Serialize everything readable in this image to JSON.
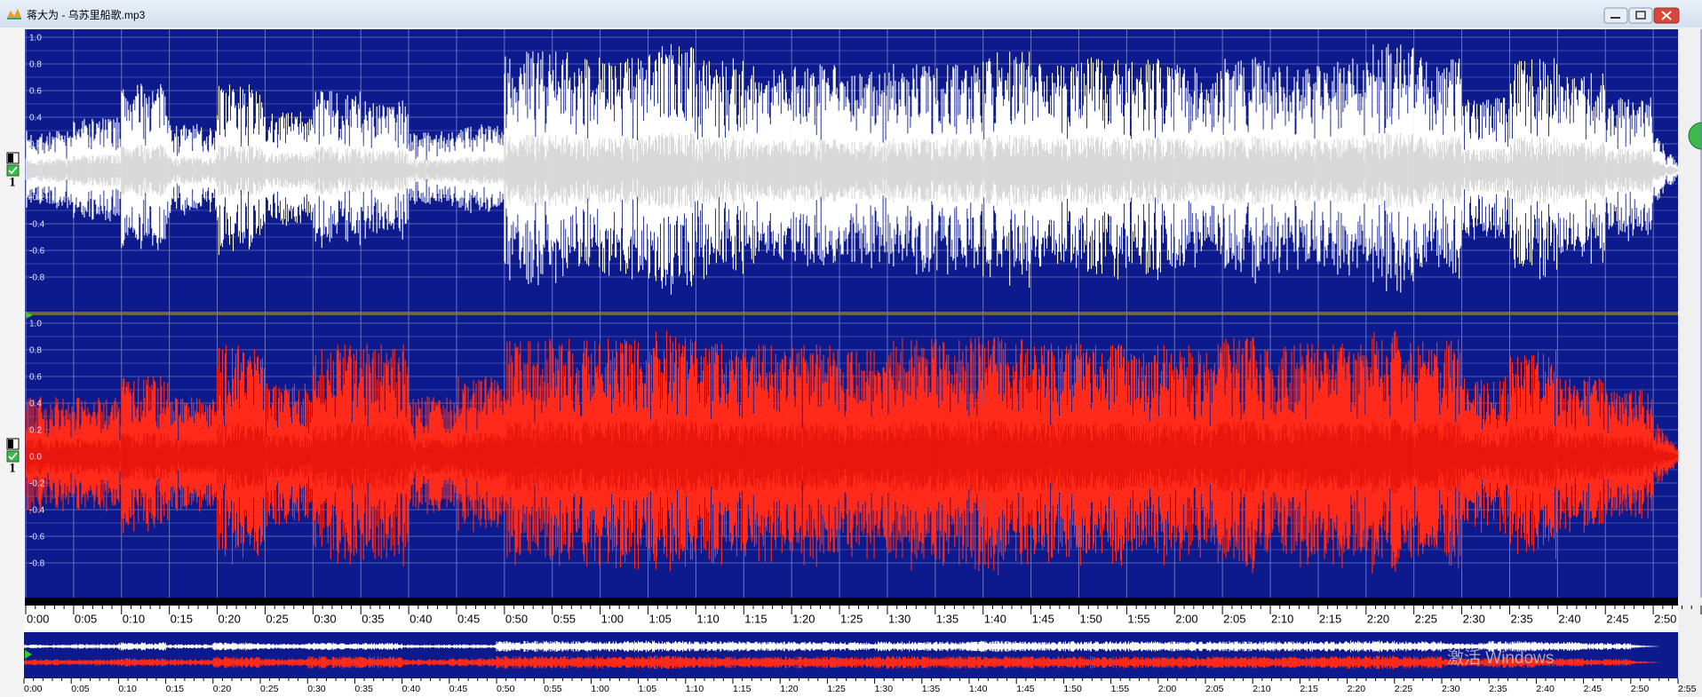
{
  "window": {
    "title": "蒋大为 - 乌苏里船歌.mp3"
  },
  "channels": [
    {
      "label": "1",
      "color": "#ffffff",
      "core_color": "#cfcfcf",
      "peaks": [
        0.3,
        0.4,
        0.65,
        0.35,
        0.65,
        0.45,
        0.6,
        0.55,
        0.3,
        0.35,
        0.9,
        0.9,
        0.85,
        0.95,
        0.85,
        0.8,
        0.8,
        0.75,
        0.8,
        0.8,
        0.9,
        0.8,
        0.85,
        0.85,
        0.8,
        0.85,
        0.8,
        0.85,
        0.95,
        0.85,
        0.55,
        0.85,
        0.75,
        0.55,
        0.3
      ]
    },
    {
      "label": "1",
      "color": "#ff2a1a",
      "core_color": "#e3120a",
      "peaks": [
        0.45,
        0.45,
        0.6,
        0.45,
        0.85,
        0.55,
        0.85,
        0.85,
        0.45,
        0.6,
        0.9,
        0.9,
        0.9,
        0.95,
        0.85,
        0.85,
        0.85,
        0.8,
        0.9,
        0.9,
        0.9,
        0.85,
        0.85,
        0.85,
        0.85,
        0.9,
        0.85,
        0.85,
        0.95,
        0.9,
        0.6,
        0.8,
        0.6,
        0.5,
        0.3
      ]
    }
  ],
  "amplitude_axis": {
    "ylim": [
      -1,
      1
    ],
    "yticks": [
      {
        "value": 1,
        "label": "1.0"
      },
      0.8,
      0.6,
      0.4,
      0.2,
      {
        "value": 0,
        "label": "0.0"
      },
      -0.2,
      -0.4,
      -0.6,
      -0.8
    ]
  },
  "time_axis": {
    "xlim": [
      0,
      175
    ],
    "xticks": [
      {
        "value": 0,
        "label": "0:00"
      },
      {
        "value": 5,
        "label": "0:05"
      },
      {
        "value": 10,
        "label": "0:10"
      },
      {
        "value": 15,
        "label": "0:15"
      },
      {
        "value": 20,
        "label": "0:20"
      },
      {
        "value": 25,
        "label": "0:25"
      },
      {
        "value": 30,
        "label": "0:30"
      },
      {
        "value": 35,
        "label": "0:35"
      },
      {
        "value": 40,
        "label": "0:40"
      },
      {
        "value": 45,
        "label": "0:45"
      },
      {
        "value": 50,
        "label": "0:50"
      },
      {
        "value": 55,
        "label": "0:55"
      },
      {
        "value": 60,
        "label": "1:00"
      },
      {
        "value": 65,
        "label": "1:05"
      },
      {
        "value": 70,
        "label": "1:10"
      },
      {
        "value": 75,
        "label": "1:15"
      },
      {
        "value": 80,
        "label": "1:20"
      },
      {
        "value": 85,
        "label": "1:25"
      },
      {
        "value": 90,
        "label": "1:30"
      },
      {
        "value": 95,
        "label": "1:35"
      },
      {
        "value": 100,
        "label": "1:40"
      },
      {
        "value": 105,
        "label": "1:45"
      },
      {
        "value": 110,
        "label": "1:50"
      },
      {
        "value": 115,
        "label": "1:55"
      },
      {
        "value": 120,
        "label": "2:00"
      },
      {
        "value": 125,
        "label": "2:05"
      },
      {
        "value": 130,
        "label": "2:10"
      },
      {
        "value": 135,
        "label": "2:15"
      },
      {
        "value": 140,
        "label": "2:20"
      },
      {
        "value": 145,
        "label": "2:25"
      },
      {
        "value": 150,
        "label": "2:30"
      },
      {
        "value": 155,
        "label": "2:35"
      },
      {
        "value": 160,
        "label": "2:40"
      },
      {
        "value": 165,
        "label": "2:45"
      },
      {
        "value": 170,
        "label": "2:50"
      },
      {
        "value": 175,
        "label": "2:55"
      }
    ]
  },
  "watermark": "激活 Windows"
}
